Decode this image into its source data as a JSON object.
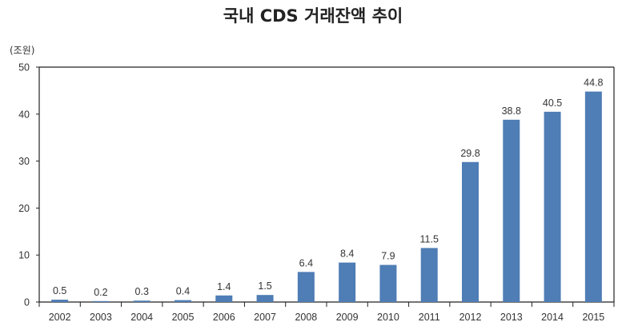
{
  "chart_data": {
    "type": "bar",
    "title": "국내 CDS 거래잔액 추이",
    "ylabel": "(조원)",
    "xlabel": "",
    "categories": [
      "2002",
      "2003",
      "2004",
      "2005",
      "2006",
      "2007",
      "2008",
      "2009",
      "2010",
      "2011",
      "2012",
      "2013",
      "2014",
      "2015"
    ],
    "values": [
      0.5,
      0.2,
      0.3,
      0.4,
      1.4,
      1.5,
      6.4,
      8.4,
      7.9,
      11.5,
      29.8,
      38.8,
      40.5,
      44.8
    ],
    "data_labels": [
      "0.5",
      "0.2",
      "0.3",
      "0.4",
      "1.4",
      "1.5",
      "6.4",
      "8.4",
      "7.9",
      "11.5",
      "29.8",
      "38.8",
      "40.5",
      "44.8"
    ],
    "ylim": [
      0,
      50
    ],
    "yticks": [
      "0",
      "10",
      "20",
      "30",
      "40",
      "50"
    ],
    "grid": false,
    "bar_color": "#4f7db5"
  }
}
